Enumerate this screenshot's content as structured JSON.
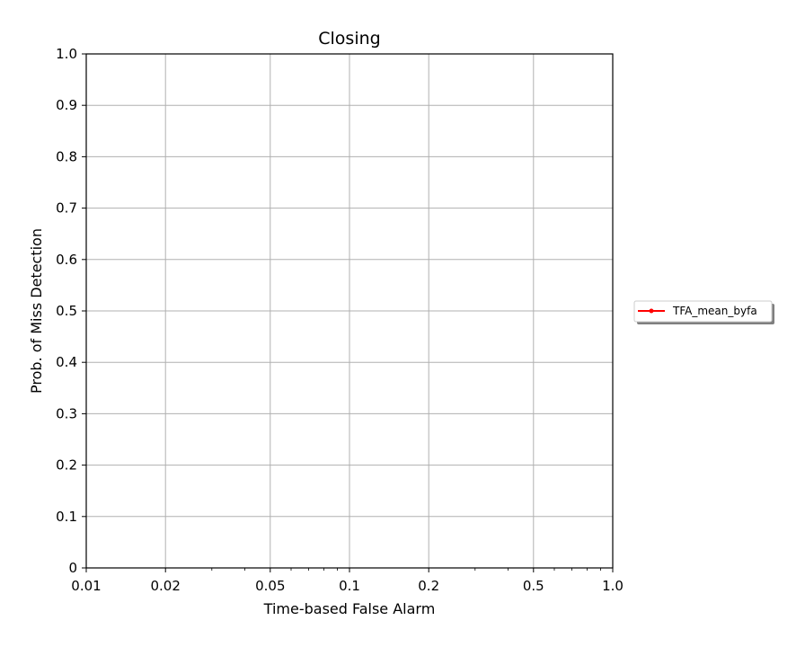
{
  "chart_data": {
    "type": "line",
    "title": "Closing",
    "xlabel": "Time-based False Alarm",
    "ylabel": "Prob. of Miss Detection",
    "xscale": "log",
    "xlim": [
      0.01,
      1.0
    ],
    "ylim": [
      0,
      1.0
    ],
    "x_ticks": [
      0.01,
      0.02,
      0.05,
      0.1,
      0.2,
      0.5,
      1.0
    ],
    "x_tick_labels": [
      "0.01",
      "0.02",
      "0.05",
      "0.1",
      "0.2",
      "0.5",
      "1.0"
    ],
    "y_ticks": [
      0,
      0.1,
      0.2,
      0.3,
      0.4,
      0.5,
      0.6,
      0.7,
      0.8,
      0.9,
      1.0
    ],
    "y_tick_labels": [
      "0",
      "0.1",
      "0.2",
      "0.3",
      "0.4",
      "0.5",
      "0.6",
      "0.7",
      "0.8",
      "0.9",
      "1.0"
    ],
    "grid": true,
    "legend_position": "right",
    "series": [
      {
        "name": "TFA_mean_byfa",
        "color": "#ff0000",
        "marker": "dot",
        "x": [],
        "y": []
      }
    ]
  }
}
